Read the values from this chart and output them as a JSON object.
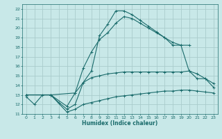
{
  "xlabel": "Humidex (Indice chaleur)",
  "bg_color": "#c8e8e8",
  "grid_color": "#aacccc",
  "line_color": "#1a6b6b",
  "xlim": [
    -0.5,
    23.5
  ],
  "ylim": [
    11,
    22.5
  ],
  "xticks": [
    0,
    1,
    2,
    3,
    4,
    5,
    6,
    7,
    8,
    9,
    10,
    11,
    12,
    13,
    14,
    15,
    16,
    17,
    18,
    19,
    20,
    21,
    22,
    23
  ],
  "yticks": [
    11,
    12,
    13,
    14,
    15,
    16,
    17,
    18,
    19,
    20,
    21,
    22
  ],
  "line1_x": [
    0,
    1,
    2,
    3,
    4,
    5,
    6,
    7,
    8,
    9,
    10,
    11,
    12,
    13,
    14,
    15,
    16,
    17,
    18,
    19,
    20,
    21,
    22,
    23
  ],
  "line1_y": [
    12.8,
    12.0,
    13.0,
    13.0,
    12.2,
    11.5,
    12.0,
    14.3,
    15.5,
    19.2,
    20.4,
    21.8,
    21.8,
    21.4,
    20.8,
    20.2,
    19.6,
    19.0,
    18.2,
    18.2,
    15.5,
    14.7,
    14.7,
    13.8
  ],
  "line2_x": [
    0,
    3,
    6,
    7,
    8,
    9,
    10,
    11,
    12,
    13,
    14,
    15,
    16,
    17,
    18,
    19,
    20
  ],
  "line2_y": [
    13.0,
    13.0,
    13.2,
    15.8,
    17.5,
    18.8,
    19.5,
    20.5,
    21.2,
    21.0,
    20.5,
    20.0,
    19.5,
    19.0,
    18.5,
    18.2,
    18.2
  ],
  "line3_x": [
    0,
    3,
    5,
    6,
    7,
    8,
    9,
    10,
    11,
    12,
    13,
    14,
    15,
    16,
    17,
    18,
    19,
    20,
    21,
    22,
    23
  ],
  "line3_y": [
    13.0,
    13.0,
    11.8,
    13.2,
    14.3,
    14.8,
    15.0,
    15.2,
    15.3,
    15.4,
    15.4,
    15.4,
    15.4,
    15.4,
    15.4,
    15.4,
    15.4,
    15.5,
    15.2,
    14.7,
    14.2
  ],
  "line4_x": [
    0,
    3,
    5,
    6,
    7,
    8,
    9,
    10,
    11,
    12,
    13,
    14,
    15,
    16,
    17,
    18,
    19,
    20,
    21,
    22,
    23
  ],
  "line4_y": [
    13.0,
    13.0,
    11.2,
    11.5,
    12.0,
    12.2,
    12.4,
    12.6,
    12.8,
    12.9,
    13.0,
    13.1,
    13.2,
    13.3,
    13.4,
    13.4,
    13.5,
    13.5,
    13.4,
    13.3,
    13.2
  ]
}
